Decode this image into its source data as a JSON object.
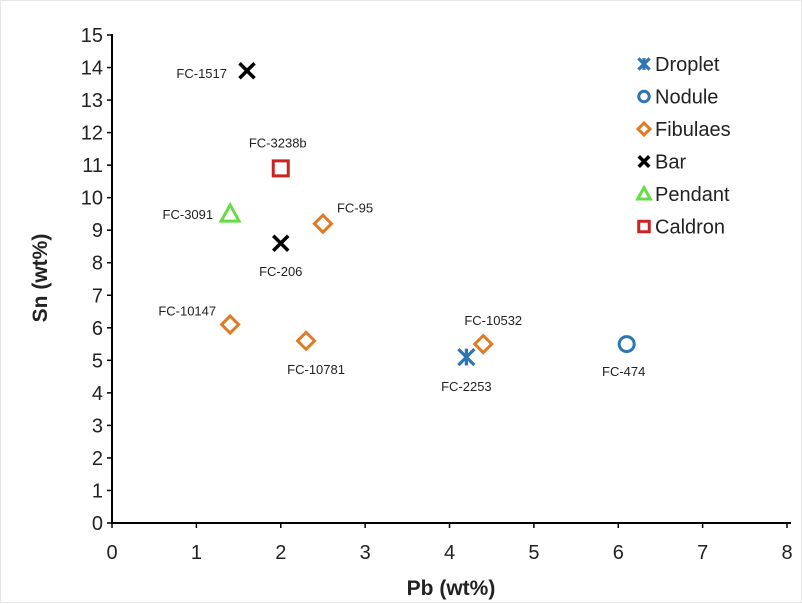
{
  "chart_data": {
    "type": "scatter",
    "xlabel": "Pb (wt%)",
    "ylabel": "Sn (wt%)",
    "xlim": [
      0,
      8
    ],
    "ylim": [
      0,
      15
    ],
    "x_ticks": [
      "0",
      "1",
      "2",
      "3",
      "4",
      "5",
      "6",
      "7",
      "8"
    ],
    "y_ticks": [
      "0",
      "1",
      "2",
      "3",
      "4",
      "5",
      "6",
      "7",
      "8",
      "9",
      "10",
      "11",
      "12",
      "13",
      "14",
      "15"
    ],
    "grid": false,
    "legend_position": "top-right",
    "series": [
      {
        "name": "Droplet",
        "marker": "asterisk",
        "color": "#2e75b6",
        "points": [
          {
            "x": 4.2,
            "y": 5.1,
            "label": "FC-2253"
          }
        ]
      },
      {
        "name": "Nodule",
        "marker": "circle",
        "color": "#2e75b6",
        "points": [
          {
            "x": 6.1,
            "y": 5.5,
            "label": "FC-474"
          }
        ]
      },
      {
        "name": "Fibulaes",
        "marker": "diamond",
        "color": "#e07b24",
        "points": [
          {
            "x": 2.5,
            "y": 9.2,
            "label": "FC-95"
          },
          {
            "x": 1.4,
            "y": 6.1,
            "label": "FC-10147"
          },
          {
            "x": 2.3,
            "y": 5.6,
            "label": "FC-10781"
          },
          {
            "x": 4.4,
            "y": 5.5,
            "label": "FC-10532"
          }
        ]
      },
      {
        "name": "Bar",
        "marker": "x",
        "color": "#000000",
        "points": [
          {
            "x": 1.6,
            "y": 13.9,
            "label": "FC-1517"
          },
          {
            "x": 2.0,
            "y": 8.6,
            "label": "FC-206"
          }
        ]
      },
      {
        "name": "Pendant",
        "marker": "triangle",
        "color": "#66dd44",
        "points": [
          {
            "x": 1.4,
            "y": 9.5,
            "label": "FC-3091"
          }
        ]
      },
      {
        "name": "Caldron",
        "marker": "square",
        "color": "#cc2222",
        "points": [
          {
            "x": 2.0,
            "y": 10.9,
            "label": "FC-3238b"
          }
        ]
      }
    ]
  }
}
